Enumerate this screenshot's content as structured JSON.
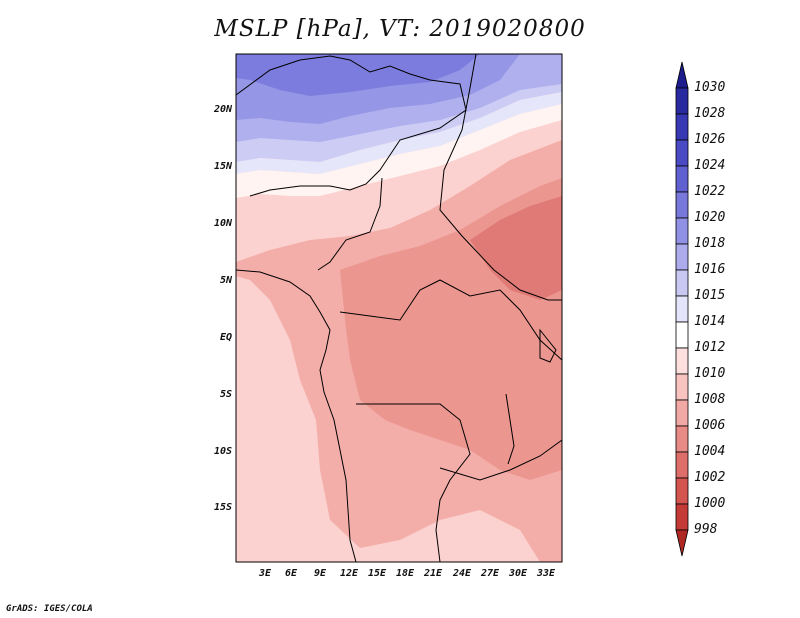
{
  "title": "MSLP [hPa], VT: 2019020800",
  "credit": "GrADS: IGES/COLA",
  "map": {
    "lat_labels": [
      "20N",
      "15N",
      "10N",
      "5N",
      "EQ",
      "5S",
      "10S",
      "15S"
    ],
    "lon_labels": [
      "3E",
      "6E",
      "9E",
      "12E",
      "15E",
      "18E",
      "21E",
      "24E",
      "27E",
      "30E",
      "33E"
    ]
  },
  "colorbar": {
    "labels": [
      "1030",
      "1028",
      "1026",
      "1024",
      "1022",
      "1020",
      "1018",
      "1016",
      "1015",
      "1014",
      "1012",
      "1010",
      "1008",
      "1006",
      "1004",
      "1002",
      "1000",
      "998"
    ],
    "colors": [
      "#1c1c8c",
      "#2a2aa0",
      "#3838b4",
      "#4a4ac4",
      "#6060d0",
      "#7878dc",
      "#9090e4",
      "#acacec",
      "#c8c8f2",
      "#e4e4fa",
      "#ffffff",
      "#fde0de",
      "#f9c4c0",
      "#f2a8a4",
      "#e88a86",
      "#de6e6a",
      "#d45450",
      "#c43a36",
      "#b02824"
    ]
  },
  "pressure_field": {
    "levels_hpa": [
      1022,
      1020,
      1018,
      1016,
      1015,
      1014,
      1012,
      1010,
      1008,
      1006
    ],
    "colors": [
      "#7c7cde",
      "#9696e6",
      "#b0b0ee",
      "#ccccf4",
      "#e6e6fa",
      "#fff4f2",
      "#fbd2cf",
      "#f4aeaa",
      "#ec9690",
      "#e07a76"
    ]
  }
}
